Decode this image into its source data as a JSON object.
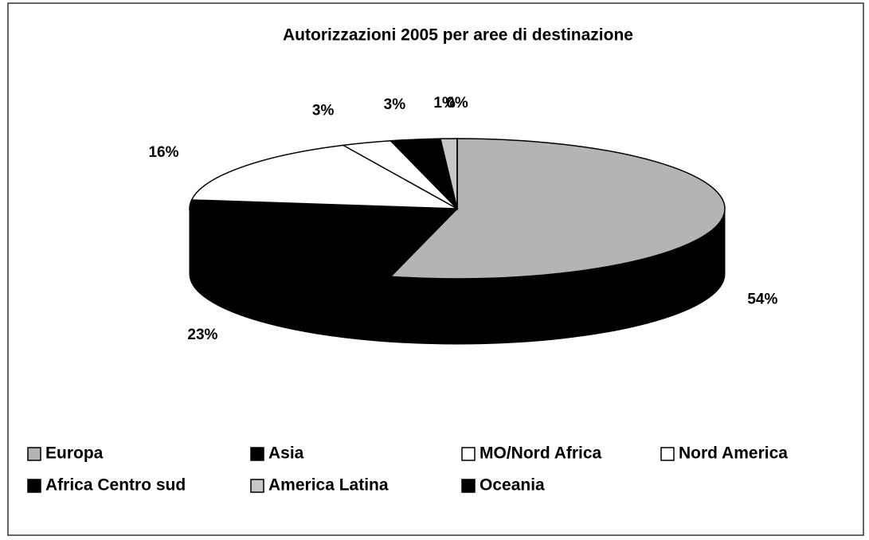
{
  "chart_data": {
    "type": "pie",
    "title": "Autorizzazioni 2005 per aree di destinazione",
    "categories": [
      "Europa",
      "Asia",
      "MO/Nord Africa",
      "Nord America",
      "Africa Centro sud",
      "America Latina",
      "Oceania"
    ],
    "values": [
      54,
      23,
      16,
      3,
      3,
      1,
      0
    ],
    "value_labels": [
      "54%",
      "23%",
      "16%",
      "3%",
      "3%",
      "1%",
      "0%"
    ],
    "colors": [
      "#b4b4b4",
      "#000000",
      "#ffffff",
      "#ffffff",
      "#000000",
      "#c8c8c8",
      "#000000"
    ],
    "legend": "bottom"
  }
}
